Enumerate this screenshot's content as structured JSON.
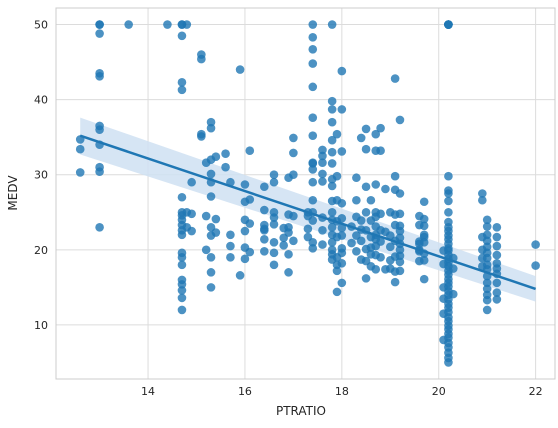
{
  "chart_data": {
    "type": "scatter",
    "xlabel": "PTRATIO",
    "ylabel": "MEDV",
    "xlim": [
      12.1,
      22.4
    ],
    "ylim": [
      2.8,
      52.2
    ],
    "x_ticks": [
      14,
      16,
      18,
      20,
      22
    ],
    "y_ticks": [
      10,
      20,
      30,
      40,
      50
    ],
    "x_tick_labels": [
      "14",
      "16",
      "18",
      "20",
      "22"
    ],
    "y_tick_labels": [
      "10",
      "20",
      "30",
      "40",
      "50"
    ],
    "grid": true,
    "point_color": "#1f77b4",
    "regression": {
      "x": [
        12.6,
        22.0
      ],
      "y": [
        35.2,
        14.8
      ],
      "ci_lower": [
        32.7,
        13.1
      ],
      "ci_upper": [
        37.6,
        16.5
      ],
      "band_color": "#cfe1f2",
      "line_color": "#1f77b4"
    },
    "points": [
      [
        12.6,
        34.7
      ],
      [
        12.6,
        33.4
      ],
      [
        12.6,
        30.3
      ],
      [
        13.0,
        50.0
      ],
      [
        13.0,
        50.0
      ],
      [
        13.0,
        48.8
      ],
      [
        13.0,
        43.5
      ],
      [
        13.0,
        43.1
      ],
      [
        13.0,
        36.5
      ],
      [
        13.0,
        36.0
      ],
      [
        13.0,
        34.0
      ],
      [
        13.0,
        31.0
      ],
      [
        13.0,
        30.4
      ],
      [
        13.0,
        23.0
      ],
      [
        13.6,
        50.0
      ],
      [
        14.4,
        50.0
      ],
      [
        14.7,
        50.0
      ],
      [
        14.7,
        50.0
      ],
      [
        14.7,
        48.5
      ],
      [
        14.7,
        42.3
      ],
      [
        14.7,
        41.3
      ],
      [
        14.7,
        27.0
      ],
      [
        14.7,
        25.0
      ],
      [
        14.7,
        24.6
      ],
      [
        14.7,
        24.0
      ],
      [
        14.7,
        23.3
      ],
      [
        14.7,
        22.6
      ],
      [
        14.7,
        22.0
      ],
      [
        14.7,
        19.6
      ],
      [
        14.7,
        19.0
      ],
      [
        14.7,
        18.0
      ],
      [
        14.7,
        16.0
      ],
      [
        14.7,
        15.4
      ],
      [
        14.7,
        14.6
      ],
      [
        14.7,
        13.6
      ],
      [
        14.7,
        12.0
      ],
      [
        14.8,
        50.0
      ],
      [
        14.8,
        25.0
      ],
      [
        14.8,
        23.0
      ],
      [
        14.9,
        29.0
      ],
      [
        14.9,
        24.8
      ],
      [
        14.9,
        22.5
      ],
      [
        15.1,
        46.0
      ],
      [
        15.1,
        45.4
      ],
      [
        15.1,
        35.4
      ],
      [
        15.1,
        35.1
      ],
      [
        15.2,
        31.6
      ],
      [
        15.2,
        24.5
      ],
      [
        15.2,
        20.0
      ],
      [
        15.3,
        37.0
      ],
      [
        15.3,
        36.2
      ],
      [
        15.3,
        32.0
      ],
      [
        15.3,
        30.1
      ],
      [
        15.3,
        29.0
      ],
      [
        15.3,
        27.1
      ],
      [
        15.3,
        23.0
      ],
      [
        15.3,
        21.9
      ],
      [
        15.3,
        19.0
      ],
      [
        15.3,
        17.0
      ],
      [
        15.3,
        15.0
      ],
      [
        15.4,
        32.4
      ],
      [
        15.4,
        24.1
      ],
      [
        15.4,
        22.3
      ],
      [
        15.6,
        32.8
      ],
      [
        15.6,
        31.0
      ],
      [
        15.7,
        29.0
      ],
      [
        15.7,
        22.0
      ],
      [
        15.7,
        20.5
      ],
      [
        15.7,
        19.0
      ],
      [
        15.9,
        44.0
      ],
      [
        15.9,
        16.6
      ],
      [
        16.0,
        28.7
      ],
      [
        16.0,
        26.4
      ],
      [
        16.0,
        24.0
      ],
      [
        16.0,
        22.5
      ],
      [
        16.0,
        20.3
      ],
      [
        16.0,
        18.8
      ],
      [
        16.1,
        33.2
      ],
      [
        16.1,
        26.7
      ],
      [
        16.1,
        23.5
      ],
      [
        16.1,
        19.7
      ],
      [
        16.4,
        28.4
      ],
      [
        16.4,
        25.3
      ],
      [
        16.4,
        23.3
      ],
      [
        16.4,
        22.8
      ],
      [
        16.4,
        22.6
      ],
      [
        16.4,
        21.4
      ],
      [
        16.4,
        19.8
      ],
      [
        16.6,
        30.0
      ],
      [
        16.6,
        29.0
      ],
      [
        16.6,
        25.0
      ],
      [
        16.6,
        24.3
      ],
      [
        16.6,
        23.4
      ],
      [
        16.6,
        21.0
      ],
      [
        16.6,
        19.6
      ],
      [
        16.6,
        18.0
      ],
      [
        16.8,
        22.9
      ],
      [
        16.8,
        21.6
      ],
      [
        16.8,
        20.6
      ],
      [
        16.9,
        29.6
      ],
      [
        16.9,
        24.7
      ],
      [
        16.9,
        23.0
      ],
      [
        16.9,
        22.3
      ],
      [
        16.9,
        19.4
      ],
      [
        16.9,
        17.0
      ],
      [
        17.0,
        34.9
      ],
      [
        17.0,
        32.9
      ],
      [
        17.0,
        30.0
      ],
      [
        17.0,
        24.5
      ],
      [
        17.0,
        21.2
      ],
      [
        17.3,
        25.0
      ],
      [
        17.3,
        24.5
      ],
      [
        17.3,
        22.8
      ],
      [
        17.3,
        21.7
      ],
      [
        17.4,
        50.0
      ],
      [
        17.4,
        48.3
      ],
      [
        17.4,
        46.7
      ],
      [
        17.4,
        44.8
      ],
      [
        17.4,
        41.7
      ],
      [
        17.4,
        37.6
      ],
      [
        17.4,
        35.2
      ],
      [
        17.4,
        31.6
      ],
      [
        17.4,
        31.5
      ],
      [
        17.4,
        30.7
      ],
      [
        17.4,
        29.0
      ],
      [
        17.4,
        26.6
      ],
      [
        17.4,
        25.0
      ],
      [
        17.4,
        23.9
      ],
      [
        17.4,
        21.0
      ],
      [
        17.4,
        20.2
      ],
      [
        17.6,
        33.3
      ],
      [
        17.6,
        32.5
      ],
      [
        17.6,
        31.6
      ],
      [
        17.6,
        30.1
      ],
      [
        17.6,
        29.1
      ],
      [
        17.6,
        24.3
      ],
      [
        17.6,
        22.6
      ],
      [
        17.6,
        20.7
      ],
      [
        17.8,
        50.0
      ],
      [
        17.8,
        39.8
      ],
      [
        17.8,
        38.7
      ],
      [
        17.8,
        37.0
      ],
      [
        17.8,
        34.6
      ],
      [
        17.8,
        33.0
      ],
      [
        17.8,
        31.5
      ],
      [
        17.8,
        29.4
      ],
      [
        17.8,
        28.5
      ],
      [
        17.8,
        26.5
      ],
      [
        17.8,
        25.0
      ],
      [
        17.8,
        24.0
      ],
      [
        17.8,
        23.0
      ],
      [
        17.8,
        22.0
      ],
      [
        17.8,
        21.0
      ],
      [
        17.8,
        20.0
      ],
      [
        17.8,
        19.4
      ],
      [
        17.8,
        18.7
      ],
      [
        17.9,
        35.4
      ],
      [
        17.9,
        29.8
      ],
      [
        17.9,
        26.6
      ],
      [
        17.9,
        23.8
      ],
      [
        17.9,
        21.7
      ],
      [
        17.9,
        19.0
      ],
      [
        17.9,
        18.0
      ],
      [
        17.9,
        17.2
      ],
      [
        17.9,
        14.4
      ],
      [
        18.0,
        43.8
      ],
      [
        18.0,
        38.7
      ],
      [
        18.0,
        33.1
      ],
      [
        18.0,
        26.2
      ],
      [
        18.0,
        24.2
      ],
      [
        18.0,
        22.9
      ],
      [
        18.0,
        21.9
      ],
      [
        18.0,
        20.2
      ],
      [
        18.0,
        19.6
      ],
      [
        18.0,
        18.2
      ],
      [
        18.0,
        15.6
      ],
      [
        18.2,
        23.1
      ],
      [
        18.2,
        20.9
      ],
      [
        18.3,
        29.6
      ],
      [
        18.3,
        26.6
      ],
      [
        18.3,
        24.4
      ],
      [
        18.3,
        21.9
      ],
      [
        18.3,
        19.8
      ],
      [
        18.4,
        34.9
      ],
      [
        18.4,
        23.9
      ],
      [
        18.4,
        22.7
      ],
      [
        18.4,
        21.2
      ],
      [
        18.4,
        18.7
      ],
      [
        18.5,
        36.1
      ],
      [
        18.5,
        33.4
      ],
      [
        18.5,
        28.4
      ],
      [
        18.5,
        25.0
      ],
      [
        18.5,
        22.6
      ],
      [
        18.5,
        20.1
      ],
      [
        18.5,
        18.5
      ],
      [
        18.5,
        16.2
      ],
      [
        18.6,
        26.6
      ],
      [
        18.6,
        23.9
      ],
      [
        18.6,
        21.7
      ],
      [
        18.6,
        20.3
      ],
      [
        18.6,
        19.4
      ],
      [
        18.6,
        17.8
      ],
      [
        18.7,
        35.4
      ],
      [
        18.7,
        33.2
      ],
      [
        18.7,
        28.7
      ],
      [
        18.7,
        25.0
      ],
      [
        18.7,
        24.4
      ],
      [
        18.7,
        23.1
      ],
      [
        18.7,
        22.0
      ],
      [
        18.7,
        21.4
      ],
      [
        18.7,
        20.5
      ],
      [
        18.7,
        19.3
      ],
      [
        18.7,
        17.4
      ],
      [
        18.8,
        36.2
      ],
      [
        18.8,
        33.2
      ],
      [
        18.8,
        24.8
      ],
      [
        18.8,
        22.6
      ],
      [
        18.8,
        21.1
      ],
      [
        18.8,
        19.0
      ],
      [
        18.9,
        28.1
      ],
      [
        18.9,
        22.4
      ],
      [
        18.9,
        17.4
      ],
      [
        19.0,
        25.0
      ],
      [
        19.0,
        21.9
      ],
      [
        19.0,
        20.4
      ],
      [
        19.0,
        18.6
      ],
      [
        19.0,
        17.5
      ],
      [
        19.1,
        42.8
      ],
      [
        19.1,
        29.8
      ],
      [
        19.1,
        28.0
      ],
      [
        19.1,
        24.7
      ],
      [
        19.1,
        23.3
      ],
      [
        19.1,
        21.2
      ],
      [
        19.1,
        19.1
      ],
      [
        19.1,
        17.1
      ],
      [
        19.1,
        15.7
      ],
      [
        19.2,
        37.3
      ],
      [
        19.2,
        27.5
      ],
      [
        19.2,
        24.8
      ],
      [
        19.2,
        23.2
      ],
      [
        19.2,
        22.5
      ],
      [
        19.2,
        21.6
      ],
      [
        19.2,
        20.8
      ],
      [
        19.2,
        20.0
      ],
      [
        19.2,
        19.2
      ],
      [
        19.2,
        18.4
      ],
      [
        19.2,
        17.2
      ],
      [
        19.6,
        24.5
      ],
      [
        19.6,
        23.3
      ],
      [
        19.6,
        21.1
      ],
      [
        19.6,
        20.8
      ],
      [
        19.6,
        20.0
      ],
      [
        19.6,
        19.8
      ],
      [
        19.6,
        18.5
      ],
      [
        19.7,
        26.4
      ],
      [
        19.7,
        24.1
      ],
      [
        19.7,
        23.2
      ],
      [
        19.7,
        22.0
      ],
      [
        19.7,
        21.7
      ],
      [
        19.7,
        21.0
      ],
      [
        19.7,
        19.5
      ],
      [
        19.7,
        18.6
      ],
      [
        19.7,
        16.1
      ],
      [
        20.1,
        19.9
      ],
      [
        20.1,
        18.1
      ],
      [
        20.1,
        15.0
      ],
      [
        20.1,
        13.5
      ],
      [
        20.1,
        11.5
      ],
      [
        20.1,
        8.0
      ],
      [
        20.2,
        50.0
      ],
      [
        20.2,
        50.0
      ],
      [
        20.2,
        50.0
      ],
      [
        20.2,
        50.0
      ],
      [
        20.2,
        50.0
      ],
      [
        20.2,
        29.8
      ],
      [
        20.2,
        27.9
      ],
      [
        20.2,
        27.5
      ],
      [
        20.2,
        26.5
      ],
      [
        20.2,
        25.0
      ],
      [
        20.2,
        23.7
      ],
      [
        20.2,
        23.0
      ],
      [
        20.2,
        22.5
      ],
      [
        20.2,
        21.9
      ],
      [
        20.2,
        21.4
      ],
      [
        20.2,
        20.8
      ],
      [
        20.2,
        20.2
      ],
      [
        20.2,
        19.9
      ],
      [
        20.2,
        19.3
      ],
      [
        20.2,
        18.8
      ],
      [
        20.2,
        18.3
      ],
      [
        20.2,
        17.8
      ],
      [
        20.2,
        17.2
      ],
      [
        20.2,
        16.7
      ],
      [
        20.2,
        16.1
      ],
      [
        20.2,
        15.6
      ],
      [
        20.2,
        15.1
      ],
      [
        20.2,
        14.5
      ],
      [
        20.2,
        14.0
      ],
      [
        20.2,
        13.4
      ],
      [
        20.2,
        12.8
      ],
      [
        20.2,
        12.3
      ],
      [
        20.2,
        11.7
      ],
      [
        20.2,
        11.0
      ],
      [
        20.2,
        10.5
      ],
      [
        20.2,
        9.9
      ],
      [
        20.2,
        9.4
      ],
      [
        20.2,
        8.8
      ],
      [
        20.2,
        8.3
      ],
      [
        20.2,
        7.6
      ],
      [
        20.2,
        7.0
      ],
      [
        20.2,
        6.3
      ],
      [
        20.2,
        5.6
      ],
      [
        20.2,
        5.0
      ],
      [
        20.3,
        18.9
      ],
      [
        20.3,
        17.5
      ],
      [
        20.3,
        14.1
      ],
      [
        20.9,
        27.5
      ],
      [
        20.9,
        26.6
      ],
      [
        20.9,
        21.7
      ],
      [
        20.9,
        20.0
      ],
      [
        20.9,
        18.9
      ],
      [
        20.9,
        17.8
      ],
      [
        21.0,
        24.0
      ],
      [
        21.0,
        23.1
      ],
      [
        21.0,
        22.0
      ],
      [
        21.0,
        21.2
      ],
      [
        21.0,
        20.4
      ],
      [
        21.0,
        19.6
      ],
      [
        21.0,
        18.9
      ],
      [
        21.0,
        18.0
      ],
      [
        21.0,
        17.4
      ],
      [
        21.0,
        16.5
      ],
      [
        21.0,
        15.6
      ],
      [
        21.0,
        14.8
      ],
      [
        21.0,
        14.0
      ],
      [
        21.0,
        13.3
      ],
      [
        21.0,
        12.0
      ],
      [
        21.2,
        23.0
      ],
      [
        21.2,
        21.7
      ],
      [
        21.2,
        20.5
      ],
      [
        21.2,
        19.3
      ],
      [
        21.2,
        18.2
      ],
      [
        21.2,
        17.5
      ],
      [
        21.2,
        16.8
      ],
      [
        21.2,
        15.6
      ],
      [
        21.2,
        14.3
      ],
      [
        21.2,
        13.4
      ],
      [
        22.0,
        20.7
      ],
      [
        22.0,
        17.9
      ]
    ]
  }
}
